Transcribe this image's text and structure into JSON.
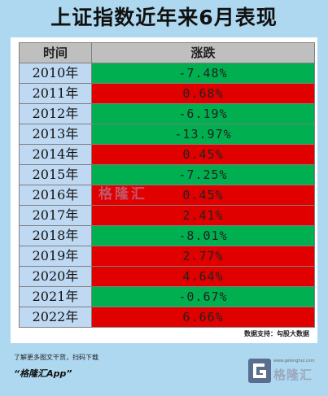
{
  "title": "上证指数近年来6月表现",
  "table": {
    "headers": [
      "时间",
      "涨跌"
    ],
    "rows": [
      {
        "year": "2010年",
        "change": "-7.48%",
        "color": "#00b050"
      },
      {
        "year": "2011年",
        "change": "0.68%",
        "color": "#e00000"
      },
      {
        "year": "2012年",
        "change": "-6.19%",
        "color": "#00b050"
      },
      {
        "year": "2013年",
        "change": "-13.97%",
        "color": "#00b050"
      },
      {
        "year": "2014年",
        "change": "0.45%",
        "color": "#e00000"
      },
      {
        "year": "2015年",
        "change": "-7.25%",
        "color": "#00b050"
      },
      {
        "year": "2016年",
        "change": "0.45%",
        "color": "#e00000"
      },
      {
        "year": "2017年",
        "change": "2.41%",
        "color": "#e00000"
      },
      {
        "year": "2018年",
        "change": "-8.01%",
        "color": "#00b050"
      },
      {
        "year": "2019年",
        "change": "2.77%",
        "color": "#e00000"
      },
      {
        "year": "2020年",
        "change": "4.64%",
        "color": "#e00000"
      },
      {
        "year": "2021年",
        "change": "-0.67%",
        "color": "#00b050"
      },
      {
        "year": "2022年",
        "change": "6.66%",
        "color": "#e00000"
      }
    ]
  },
  "source": "数据支持：勾股大数据",
  "watermark": "格隆汇",
  "footer": {
    "note": "了解更多图文干货，扫码下载",
    "app": "“格隆汇App”"
  },
  "brand": {
    "name": "格隆汇",
    "url": "www.gelonghui.com"
  },
  "colors": {
    "background": "#aed8f0",
    "up": "#e00000",
    "down": "#00b050",
    "header_bg": "#bfbfbf",
    "year_bg": "#bfd9f2"
  }
}
